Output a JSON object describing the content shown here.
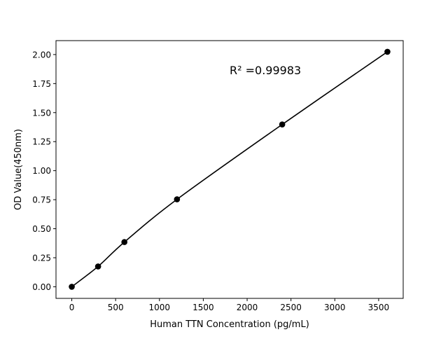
{
  "chart_data": {
    "type": "line",
    "title": "",
    "xlabel": "Human TTN Concentration (pg/mL)",
    "ylabel": "OD Value(450nm)",
    "xlim": [
      -180,
      3780
    ],
    "ylim": [
      -0.1,
      2.12
    ],
    "xticks": [
      0,
      500,
      1000,
      1500,
      2000,
      2500,
      3000,
      3500
    ],
    "xtick_labels": [
      "0",
      "500",
      "1000",
      "1500",
      "2000",
      "2500",
      "3000",
      "3500"
    ],
    "yticks": [
      0,
      0.25,
      0.5,
      0.75,
      1.0,
      1.25,
      1.5,
      1.75,
      2.0
    ],
    "ytick_labels": [
      "0.00",
      "0.25",
      "0.50",
      "0.75",
      "1.00",
      "1.25",
      "1.50",
      "1.75",
      "2.00"
    ],
    "grid": false,
    "series": [
      {
        "x": [
          0,
          300,
          600,
          1200,
          2400,
          3600
        ],
        "y": [
          0.0,
          0.175,
          0.385,
          0.753,
          1.398,
          2.024
        ],
        "color": "#000000",
        "marker": "circle"
      }
    ],
    "annotations": [
      {
        "text": "R² =0.99983",
        "x": 1800,
        "y": 1.83
      }
    ]
  }
}
